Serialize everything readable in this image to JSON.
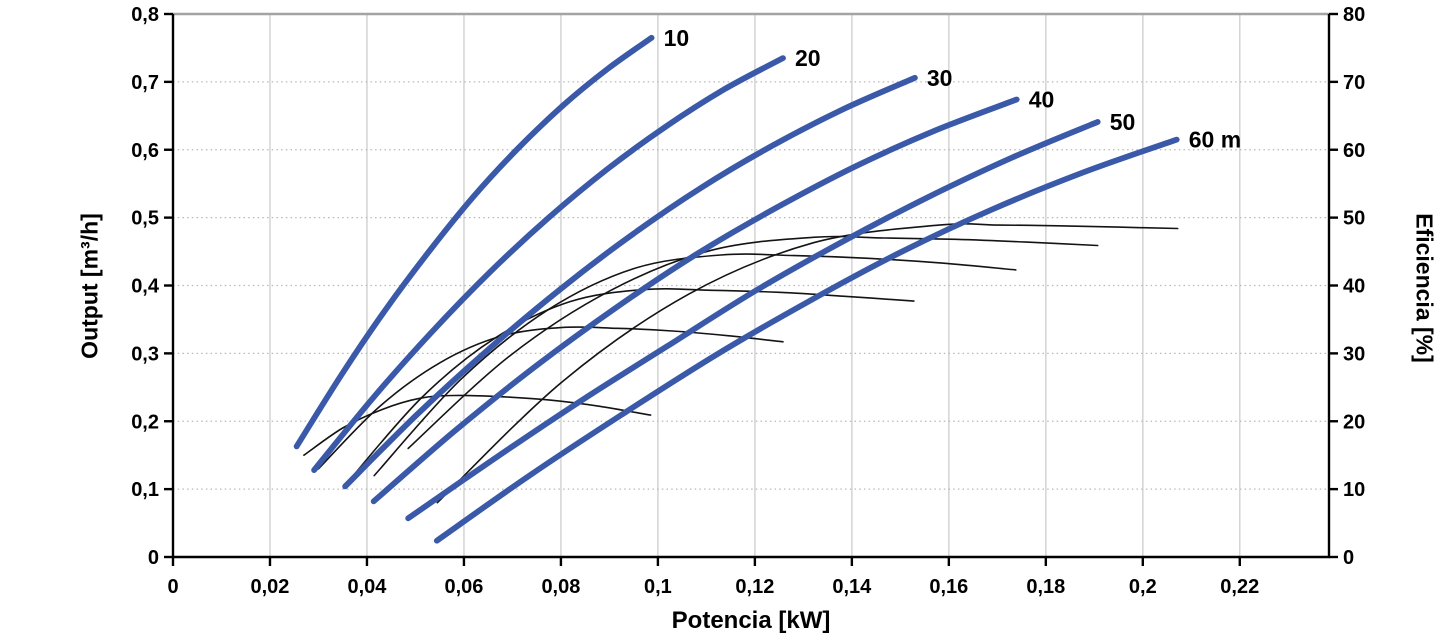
{
  "chart_data": {
    "type": "line",
    "title": "",
    "xlabel": "Potencia [kW]",
    "ylabel_left": "Output [m³/h]",
    "ylabel_right": "Eficiencia [%]",
    "xlim": [
      0,
      0.2384
    ],
    "ylim_left": [
      0,
      0.8
    ],
    "ylim_right": [
      0,
      80
    ],
    "grid": {
      "vertical": "solid",
      "horizontal": "dotted",
      "top_line": "solid-gray"
    },
    "x_ticks": {
      "values": [
        0,
        0.02,
        0.04,
        0.06,
        0.08,
        0.1,
        0.12,
        0.14,
        0.16,
        0.18,
        0.2,
        0.22
      ],
      "labels": [
        "0",
        "0,02",
        "0,04",
        "0,06",
        "0,08",
        "0,1",
        "0,12",
        "0,14",
        "0,16",
        "0,18",
        "0,2",
        "0,22"
      ]
    },
    "y_left_ticks": {
      "values": [
        0,
        0.1,
        0.2,
        0.3,
        0.4,
        0.5,
        0.6,
        0.7,
        0.8
      ],
      "labels": [
        "0",
        "0,1",
        "0,2",
        "0,3",
        "0,4",
        "0,5",
        "0,6",
        "0,7",
        "0,8"
      ]
    },
    "y_right_ticks": {
      "values": [
        0,
        10,
        20,
        30,
        40,
        50,
        60,
        70,
        80
      ],
      "labels": [
        "0",
        "10",
        "20",
        "30",
        "40",
        "50",
        "60",
        "70",
        "80"
      ]
    },
    "colors": {
      "head_curve": "#3A59A8",
      "efficiency_curve": "#141414",
      "grid_vertical": "#D6D6D6",
      "grid_dotted": "#B8B8B8",
      "grid_top": "#A3A3A3",
      "axis": "#000000",
      "text": "#000000"
    },
    "head_curves": [
      {
        "label": "10",
        "points": [
          [
            0.0255,
            0.163
          ],
          [
            0.0347,
            0.268
          ],
          [
            0.0438,
            0.364
          ],
          [
            0.053,
            0.452
          ],
          [
            0.0621,
            0.532
          ],
          [
            0.0713,
            0.603
          ],
          [
            0.0804,
            0.665
          ],
          [
            0.0896,
            0.719
          ],
          [
            0.0987,
            0.765
          ]
        ]
      },
      {
        "label": "20",
        "points": [
          [
            0.0291,
            0.128
          ],
          [
            0.0412,
            0.234
          ],
          [
            0.0533,
            0.331
          ],
          [
            0.0654,
            0.42
          ],
          [
            0.0775,
            0.5
          ],
          [
            0.0895,
            0.571
          ],
          [
            0.1016,
            0.634
          ],
          [
            0.1137,
            0.689
          ],
          [
            0.1258,
            0.735
          ]
        ]
      },
      {
        "label": "30",
        "points": [
          [
            0.0355,
            0.104
          ],
          [
            0.0502,
            0.209
          ],
          [
            0.0649,
            0.305
          ],
          [
            0.0796,
            0.393
          ],
          [
            0.0943,
            0.473
          ],
          [
            0.1089,
            0.544
          ],
          [
            0.1236,
            0.606
          ],
          [
            0.1383,
            0.66
          ],
          [
            0.153,
            0.706
          ]
        ]
      },
      {
        "label": "40",
        "points": [
          [
            0.0414,
            0.082
          ],
          [
            0.058,
            0.185
          ],
          [
            0.0746,
            0.28
          ],
          [
            0.0911,
            0.366
          ],
          [
            0.1077,
            0.445
          ],
          [
            0.1243,
            0.514
          ],
          [
            0.1409,
            0.576
          ],
          [
            0.1574,
            0.629
          ],
          [
            0.174,
            0.674
          ]
        ]
      },
      {
        "label": "50",
        "points": [
          [
            0.0485,
            0.057
          ],
          [
            0.0663,
            0.145
          ],
          [
            0.0841,
            0.23
          ],
          [
            0.1018,
            0.31
          ],
          [
            0.1196,
            0.39
          ],
          [
            0.1374,
            0.462
          ],
          [
            0.1551,
            0.528
          ],
          [
            0.1729,
            0.588
          ],
          [
            0.1907,
            0.641
          ]
        ]
      },
      {
        "label": "60 m",
        "points": [
          [
            0.0544,
            0.024
          ],
          [
            0.0735,
            0.12
          ],
          [
            0.0926,
            0.21
          ],
          [
            0.1116,
            0.296
          ],
          [
            0.1307,
            0.375
          ],
          [
            0.1498,
            0.448
          ],
          [
            0.1689,
            0.512
          ],
          [
            0.1879,
            0.567
          ],
          [
            0.207,
            0.615
          ]
        ]
      }
    ],
    "efficiency_curves": [
      {
        "label": "eff-10",
        "points": [
          [
            0.027,
            15.0
          ],
          [
            0.035,
            19.0
          ],
          [
            0.043,
            21.7
          ],
          [
            0.051,
            23.4
          ],
          [
            0.058,
            23.8
          ],
          [
            0.068,
            23.6
          ],
          [
            0.078,
            23.1
          ],
          [
            0.088,
            22.2
          ],
          [
            0.0985,
            20.9
          ]
        ]
      },
      {
        "label": "eff-20",
        "points": [
          [
            0.03,
            13.0
          ],
          [
            0.0425,
            22.1
          ],
          [
            0.055,
            28.6
          ],
          [
            0.0675,
            32.5
          ],
          [
            0.08,
            33.8
          ],
          [
            0.0915,
            33.7
          ],
          [
            0.103,
            33.3
          ],
          [
            0.1144,
            32.6
          ],
          [
            0.1258,
            31.7
          ]
        ]
      },
      {
        "label": "eff-30",
        "points": [
          [
            0.036,
            11.0
          ],
          [
            0.0513,
            23.5
          ],
          [
            0.0665,
            32.3
          ],
          [
            0.0818,
            37.6
          ],
          [
            0.097,
            39.4
          ],
          [
            0.111,
            39.3
          ],
          [
            0.125,
            39.0
          ],
          [
            0.1389,
            38.4
          ],
          [
            0.1528,
            37.7
          ]
        ]
      },
      {
        "label": "eff-40",
        "points": [
          [
            0.0415,
            12.0
          ],
          [
            0.0594,
            26.2
          ],
          [
            0.0773,
            36.4
          ],
          [
            0.0951,
            42.5
          ],
          [
            0.113,
            44.5
          ],
          [
            0.1282,
            44.4
          ],
          [
            0.1434,
            44.0
          ],
          [
            0.1586,
            43.3
          ],
          [
            0.1738,
            42.3
          ]
        ]
      },
      {
        "label": "eff-50",
        "points": [
          [
            0.0485,
            16.0
          ],
          [
            0.0694,
            29.6
          ],
          [
            0.0903,
            39.3
          ],
          [
            0.1111,
            45.2
          ],
          [
            0.132,
            47.1
          ],
          [
            0.1467,
            47.0
          ],
          [
            0.1614,
            46.8
          ],
          [
            0.176,
            46.4
          ],
          [
            0.1907,
            45.9
          ]
        ]
      },
      {
        "label": "eff-60",
        "points": [
          [
            0.0545,
            8.0
          ],
          [
            0.0804,
            25.9
          ],
          [
            0.1063,
            38.7
          ],
          [
            0.1321,
            46.3
          ],
          [
            0.158,
            48.9
          ],
          [
            0.1703,
            48.9
          ],
          [
            0.1826,
            48.8
          ],
          [
            0.1949,
            48.6
          ],
          [
            0.2072,
            48.4
          ]
        ]
      }
    ]
  }
}
